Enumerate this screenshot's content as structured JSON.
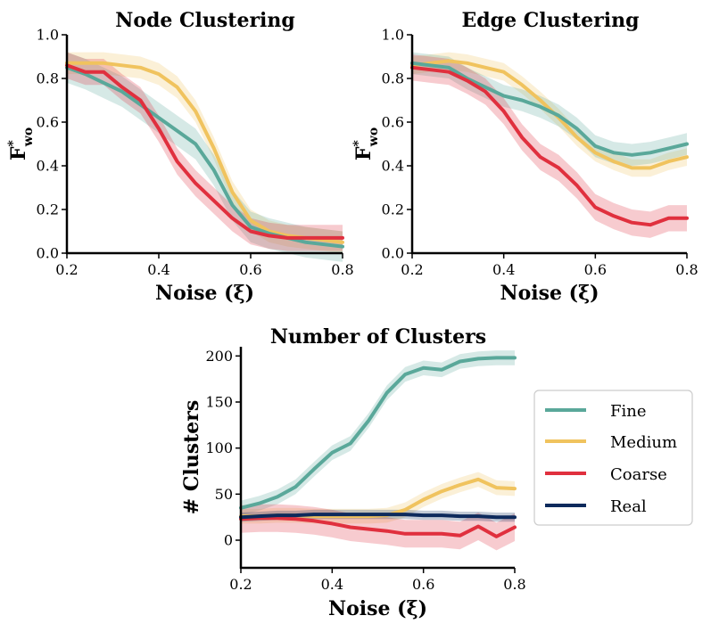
{
  "colors": {
    "Fine": "#5aa89a",
    "Medium": "#f0c35e",
    "Coarse": "#e0303e",
    "Real": "#0d2a5c"
  },
  "legend": [
    "Fine",
    "Medium",
    "Coarse",
    "Real"
  ],
  "chart_data": [
    {
      "id": "node",
      "type": "line",
      "title": "Node Clustering",
      "xlabel": "Noise (ξ)",
      "ylabel_main": "F",
      "ylabel_sup": "*",
      "ylabel_sub": "wo",
      "xlim": [
        0.2,
        0.8
      ],
      "ylim": [
        0.0,
        1.0
      ],
      "xticks": [
        "0.2",
        "0.4",
        "0.6",
        "0.8"
      ],
      "xtick_values": [
        0.2,
        0.4,
        0.6,
        0.8
      ],
      "yticks": [
        "0.0",
        "0.2",
        "0.4",
        "0.6",
        "0.8",
        "1.0"
      ],
      "ytick_values": [
        0.0,
        0.2,
        0.4,
        0.6,
        0.8,
        1.0
      ],
      "x": [
        0.2,
        0.24,
        0.28,
        0.32,
        0.36,
        0.4,
        0.44,
        0.48,
        0.52,
        0.56,
        0.6,
        0.64,
        0.68,
        0.72,
        0.76,
        0.8
      ],
      "series": [
        {
          "name": "Fine",
          "values": [
            0.85,
            0.82,
            0.78,
            0.74,
            0.68,
            0.62,
            0.56,
            0.5,
            0.38,
            0.22,
            0.12,
            0.09,
            0.07,
            0.05,
            0.04,
            0.03
          ],
          "band": 0.07
        },
        {
          "name": "Medium",
          "values": [
            0.87,
            0.87,
            0.87,
            0.86,
            0.85,
            0.82,
            0.76,
            0.65,
            0.48,
            0.28,
            0.15,
            0.1,
            0.08,
            0.07,
            0.06,
            0.05
          ],
          "band": 0.05
        },
        {
          "name": "Coarse",
          "values": [
            0.86,
            0.83,
            0.83,
            0.76,
            0.7,
            0.57,
            0.42,
            0.32,
            0.24,
            0.16,
            0.1,
            0.08,
            0.07,
            0.07,
            0.07,
            0.07
          ],
          "band": 0.06
        },
        {
          "name": "Real",
          "values": null,
          "band": 0
        }
      ]
    },
    {
      "id": "edge",
      "type": "line",
      "title": "Edge Clustering",
      "xlabel": "Noise (ξ)",
      "ylabel_main": "F",
      "ylabel_sup": "*",
      "ylabel_sub": "wo",
      "xlim": [
        0.2,
        0.8
      ],
      "ylim": [
        0.0,
        1.0
      ],
      "xticks": [
        "0.2",
        "0.4",
        "0.6",
        "0.8"
      ],
      "xtick_values": [
        0.2,
        0.4,
        0.6,
        0.8
      ],
      "yticks": [
        "0.0",
        "0.2",
        "0.4",
        "0.6",
        "0.8",
        "1.0"
      ],
      "ytick_values": [
        0.0,
        0.2,
        0.4,
        0.6,
        0.8,
        1.0
      ],
      "x": [
        0.2,
        0.24,
        0.28,
        0.32,
        0.36,
        0.4,
        0.44,
        0.48,
        0.52,
        0.56,
        0.6,
        0.64,
        0.68,
        0.72,
        0.76,
        0.8
      ],
      "series": [
        {
          "name": "Fine",
          "values": [
            0.87,
            0.86,
            0.85,
            0.8,
            0.76,
            0.72,
            0.7,
            0.67,
            0.63,
            0.57,
            0.49,
            0.46,
            0.45,
            0.46,
            0.48,
            0.5
          ],
          "band": 0.05
        },
        {
          "name": "Medium",
          "values": [
            0.86,
            0.87,
            0.88,
            0.87,
            0.85,
            0.83,
            0.77,
            0.7,
            0.62,
            0.53,
            0.46,
            0.42,
            0.39,
            0.39,
            0.42,
            0.44
          ],
          "band": 0.04
        },
        {
          "name": "Coarse",
          "values": [
            0.85,
            0.84,
            0.83,
            0.79,
            0.74,
            0.65,
            0.53,
            0.44,
            0.39,
            0.31,
            0.21,
            0.17,
            0.14,
            0.13,
            0.16,
            0.16
          ],
          "band": 0.06
        },
        {
          "name": "Real",
          "values": null,
          "band": 0
        }
      ]
    },
    {
      "id": "clusters",
      "type": "line",
      "title": "Number of Clusters",
      "xlabel": "Noise (ξ)",
      "ylabel": "# Clusters",
      "xlim": [
        0.2,
        0.8
      ],
      "ylim": [
        -30,
        210
      ],
      "xticks": [
        "0.2",
        "0.4",
        "0.6",
        "0.8"
      ],
      "xtick_values": [
        0.2,
        0.4,
        0.6,
        0.8
      ],
      "yticks": [
        "0",
        "50",
        "100",
        "150",
        "200"
      ],
      "ytick_values": [
        0,
        50,
        100,
        150,
        200
      ],
      "x": [
        0.2,
        0.24,
        0.28,
        0.32,
        0.36,
        0.4,
        0.44,
        0.48,
        0.52,
        0.56,
        0.6,
        0.64,
        0.68,
        0.72,
        0.76,
        0.8
      ],
      "series": [
        {
          "name": "Fine",
          "values": [
            35,
            40,
            47,
            58,
            77,
            95,
            105,
            130,
            160,
            180,
            187,
            185,
            194,
            197,
            198,
            198
          ],
          "band": 8
        },
        {
          "name": "Medium",
          "values": [
            26,
            26,
            27,
            27,
            26,
            26,
            26,
            26,
            27,
            33,
            44,
            53,
            60,
            66,
            57,
            56
          ],
          "band": 8
        },
        {
          "name": "Coarse",
          "values": [
            23,
            24,
            24,
            23,
            21,
            18,
            14,
            12,
            10,
            7,
            7,
            7,
            5,
            15,
            4,
            14
          ],
          "band": 15
        },
        {
          "name": "Real",
          "values": [
            25,
            26,
            27,
            27,
            28,
            28,
            28,
            28,
            28,
            28,
            27,
            27,
            26,
            26,
            25,
            25
          ],
          "band": 5
        }
      ]
    }
  ]
}
